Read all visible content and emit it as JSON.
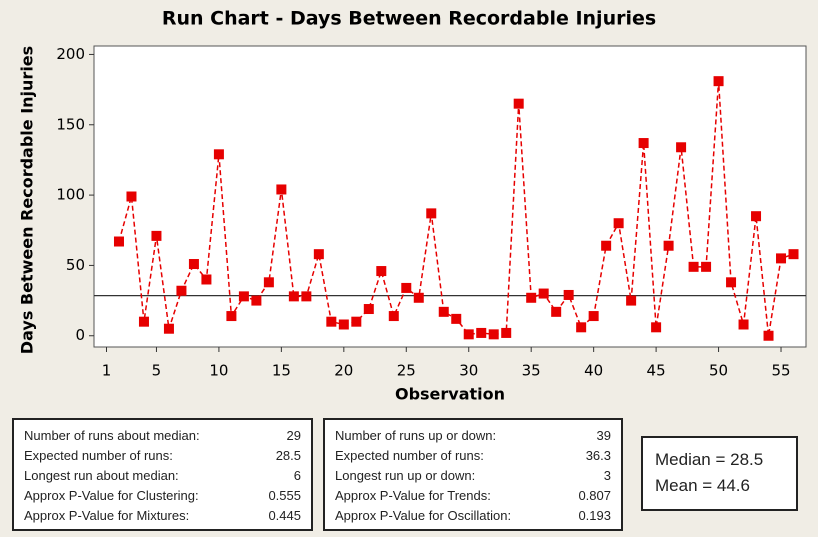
{
  "chart_data": {
    "type": "line",
    "title": "Run Chart - Days Between Recordable Injuries",
    "x_label": "Observation",
    "y_label": "Days Between Recordable Injuries",
    "x": [
      2,
      3,
      4,
      5,
      6,
      7,
      8,
      9,
      10,
      11,
      12,
      13,
      14,
      15,
      16,
      17,
      18,
      19,
      20,
      21,
      22,
      23,
      24,
      25,
      26,
      27,
      28,
      29,
      30,
      31,
      32,
      33,
      34,
      35,
      36,
      37,
      38,
      39,
      40,
      41,
      42,
      43,
      44,
      45,
      46,
      47,
      48,
      49,
      50,
      51,
      52,
      53,
      54,
      55,
      56
    ],
    "values": [
      67,
      99,
      10,
      71,
      5,
      32,
      51,
      40,
      129,
      14,
      28,
      25,
      38,
      104,
      28,
      28,
      58,
      10,
      8,
      10,
      19,
      46,
      14,
      34,
      27,
      87,
      17,
      12,
      1,
      2,
      1,
      2,
      165,
      27,
      30,
      17,
      29,
      6,
      14,
      64,
      80,
      25,
      137,
      6,
      64,
      134,
      49,
      49,
      181,
      38,
      8,
      85,
      0,
      55,
      58
    ],
    "color": "#e60000",
    "median": 28.5,
    "xlim": [
      0,
      57
    ],
    "ylim": [
      -8,
      206
    ],
    "xticks": [
      1,
      5,
      10,
      15,
      20,
      25,
      30,
      35,
      40,
      45,
      50,
      55
    ],
    "yticks": [
      0,
      50,
      100,
      150,
      200
    ]
  },
  "stats_left": [
    {
      "label": "Number of runs about median:",
      "value": 29
    },
    {
      "label": "Expected number of runs:",
      "value": 28.5
    },
    {
      "label": "Longest run about median:",
      "value": 6
    },
    {
      "label": "Approx P-Value for Clustering:",
      "value": 0.555
    },
    {
      "label": "Approx P-Value for Mixtures:",
      "value": 0.445
    }
  ],
  "stats_right": [
    {
      "label": "Number of runs up or down:",
      "value": 39
    },
    {
      "label": "Expected number of runs:",
      "value": 36.3
    },
    {
      "label": "Longest run up or down:",
      "value": 3
    },
    {
      "label": "Approx P-Value for Trends:",
      "value": 0.807
    },
    {
      "label": "Approx P-Value for Oscillation:",
      "value": 0.193
    }
  ],
  "summary": [
    "Median = 28.5",
    "Mean = 44.6"
  ]
}
